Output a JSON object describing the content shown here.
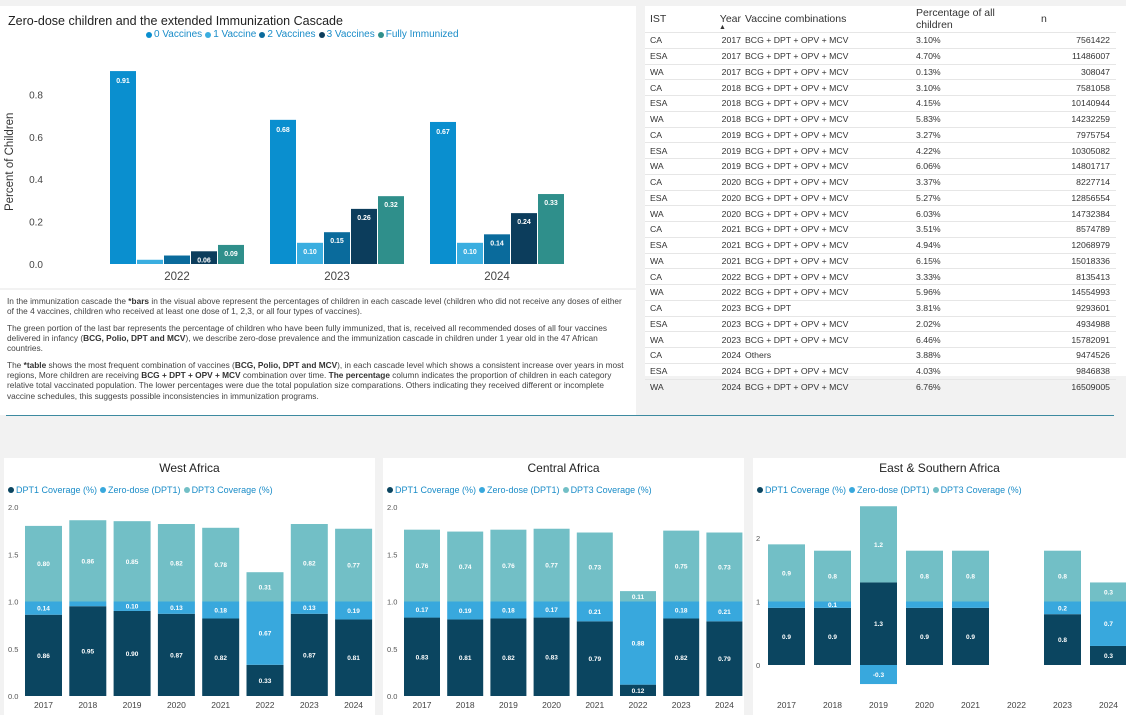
{
  "cascade": {
    "title": "Zero-dose children and the extended Immunization Cascade",
    "legend": [
      "0 Vaccines",
      "1 Vaccine",
      "2 Vaccines",
      "3 Vaccines",
      "Fully Immunized"
    ],
    "ylabel": "Percent of Children"
  },
  "description": {
    "p1_a": "In the immunization cascade the ",
    "p1_b": "*bars",
    "p1_c": " in the visual above represent the percentages of children in each cascade level (children who did not receive any doses of either of the 4 vaccines, children who received at least one dose of 1, 2,3, or all four types of vaccines).",
    "p2_a": "The green portion of the last bar represents the percentage of children who have been fully immunized, that is, received all recommended doses of all four vaccines delivered in infancy (",
    "p2_b": "BCG, Polio, DPT and MCV",
    "p2_c": "), we describe zero-dose prevalence and the immunization cascade in children under 1 year old in the 47 African countries.",
    "p3_a": "The ",
    "p3_b": "*table",
    "p3_c": " shows the most frequent combination  of vaccines (",
    "p3_d": "BCG, Polio, DPT and MCV",
    "p3_e": "), in each cascade level which shows a consistent increase over years in most regions, More children are receiving ",
    "p3_f": "BCG + DPT + OPV + MCV",
    "p3_g": " combination over time. ",
    "p3_h": "The percentage",
    "p3_i": " column indicates the proportion of children in each category relative total vaccinated population. The lower percentages were due the total population size comparations. Others indicating they received different or incomplete vaccine schedules, this suggests possible inconsistencies in immunization programs."
  },
  "table": {
    "headers": [
      "IST",
      "Year",
      "Vaccine combinations",
      "Percentage of all children",
      "n"
    ],
    "sort_indicator": "▲",
    "rows": [
      [
        "CA",
        "2017",
        "BCG + DPT + OPV + MCV",
        "3.10%",
        "7561422"
      ],
      [
        "ESA",
        "2017",
        "BCG + DPT + OPV + MCV",
        "4.70%",
        "11486007"
      ],
      [
        "WA",
        "2017",
        "BCG + DPT + OPV + MCV",
        "0.13%",
        "308047"
      ],
      [
        "CA",
        "2018",
        "BCG + DPT + OPV + MCV",
        "3.10%",
        "7581058"
      ],
      [
        "ESA",
        "2018",
        "BCG + DPT + OPV + MCV",
        "4.15%",
        "10140944"
      ],
      [
        "WA",
        "2018",
        "BCG + DPT + OPV + MCV",
        "5.83%",
        "14232259"
      ],
      [
        "CA",
        "2019",
        "BCG + DPT + OPV + MCV",
        "3.27%",
        "7975754"
      ],
      [
        "ESA",
        "2019",
        "BCG + DPT + OPV + MCV",
        "4.22%",
        "10305082"
      ],
      [
        "WA",
        "2019",
        "BCG + DPT + OPV + MCV",
        "6.06%",
        "14801717"
      ],
      [
        "CA",
        "2020",
        "BCG + DPT + OPV + MCV",
        "3.37%",
        "8227714"
      ],
      [
        "ESA",
        "2020",
        "BCG + DPT + OPV + MCV",
        "5.27%",
        "12856554"
      ],
      [
        "WA",
        "2020",
        "BCG + DPT + OPV + MCV",
        "6.03%",
        "14732384"
      ],
      [
        "CA",
        "2021",
        "BCG + DPT + OPV + MCV",
        "3.51%",
        "8574789"
      ],
      [
        "ESA",
        "2021",
        "BCG + DPT + OPV + MCV",
        "4.94%",
        "12068979"
      ],
      [
        "WA",
        "2021",
        "BCG + DPT + OPV + MCV",
        "6.15%",
        "15018336"
      ],
      [
        "CA",
        "2022",
        "BCG + DPT + OPV + MCV",
        "3.33%",
        "8135413"
      ],
      [
        "WA",
        "2022",
        "BCG + DPT + OPV + MCV",
        "5.96%",
        "14554993"
      ],
      [
        "CA",
        "2023",
        "BCG + DPT",
        "3.81%",
        "9293601"
      ],
      [
        "ESA",
        "2023",
        "BCG + DPT + OPV + MCV",
        "2.02%",
        "4934988"
      ],
      [
        "WA",
        "2023",
        "BCG + DPT + OPV + MCV",
        "6.46%",
        "15782091"
      ],
      [
        "CA",
        "2024",
        "Others",
        "3.88%",
        "9474526"
      ],
      [
        "ESA",
        "2024",
        "BCG + DPT + OPV + MCV",
        "4.03%",
        "9846838"
      ],
      [
        "WA",
        "2024",
        "BCG + DPT + OPV + MCV",
        "6.76%",
        "16509005"
      ]
    ]
  },
  "colors": {
    "zero_vaccines": "#0a8fcf",
    "one_vaccine": "#3aaee0",
    "two_vaccines": "#0a6b9c",
    "three_vaccines": "#0c3d5c",
    "fully_immunized": "#2f8f8b",
    "dpt1": "#0b4560",
    "zero_dose": "#38a8dd",
    "dpt3": "#72bfc6"
  },
  "chart_data": [
    {
      "id": "cascade",
      "type": "bar",
      "title": "Zero-dose children and the extended Immunization Cascade",
      "xlabel": "",
      "ylabel": "Percent of Children",
      "categories": [
        "2022",
        "2023",
        "2024"
      ],
      "ylim": [
        0,
        1.0
      ],
      "yticks": [
        0.0,
        0.2,
        0.4,
        0.6,
        0.8
      ],
      "series": [
        {
          "name": "0 Vaccines",
          "values": [
            0.91,
            0.68,
            0.67
          ]
        },
        {
          "name": "1 Vaccine",
          "values": [
            0.02,
            0.1,
            0.1
          ]
        },
        {
          "name": "2 Vaccines",
          "values": [
            0.04,
            0.15,
            0.14
          ]
        },
        {
          "name": "3 Vaccines",
          "values": [
            0.06,
            0.26,
            0.24
          ]
        },
        {
          "name": "Fully Immunized",
          "values": [
            0.09,
            0.32,
            0.33
          ]
        }
      ],
      "labels": [
        [
          "0.91",
          "",
          "",
          "0.06",
          "0.09"
        ],
        [
          "0.68",
          "0.10",
          "0.15",
          "0.26",
          "0.32"
        ],
        [
          "0.67",
          "0.10",
          "0.14",
          "0.24",
          "0.33"
        ]
      ]
    },
    {
      "id": "west",
      "type": "bar",
      "stacked": true,
      "title": "West Africa",
      "categories": [
        "2017",
        "2018",
        "2019",
        "2020",
        "2021",
        "2022",
        "2023",
        "2024"
      ],
      "ylim": [
        0,
        2.0
      ],
      "yticks": [
        "0.0",
        "0.5",
        "1.0",
        "1.5",
        "2.0"
      ],
      "legend": [
        "DPT1 Coverage (%)",
        "Zero-dose (DPT1)",
        "DPT3 Coverage (%)"
      ],
      "series": [
        {
          "name": "DPT1 Coverage (%)",
          "values": [
            0.86,
            0.95,
            0.9,
            0.87,
            0.82,
            0.33,
            0.87,
            0.81
          ]
        },
        {
          "name": "Zero-dose (DPT1)",
          "values": [
            0.14,
            0.05,
            0.1,
            0.13,
            0.18,
            0.67,
            0.13,
            0.19
          ]
        },
        {
          "name": "DPT3 Coverage (%)",
          "values": [
            0.8,
            0.86,
            0.85,
            0.82,
            0.78,
            0.31,
            0.82,
            0.77
          ]
        }
      ],
      "labels": [
        [
          "0.86",
          "0.95",
          "0.90",
          "0.87",
          "0.82",
          "0.33",
          "0.87",
          "0.81"
        ],
        [
          "0.14",
          "",
          "0.10",
          "0.13",
          "0.18",
          "0.67",
          "0.13",
          "0.19"
        ],
        [
          "0.80",
          "0.86",
          "0.85",
          "0.82",
          "0.78",
          "0.31",
          "0.82",
          "0.77"
        ]
      ]
    },
    {
      "id": "central",
      "type": "bar",
      "stacked": true,
      "title": "Central Africa",
      "categories": [
        "2017",
        "2018",
        "2019",
        "2020",
        "2021",
        "2022",
        "2023",
        "2024"
      ],
      "ylim": [
        0,
        2.0
      ],
      "yticks": [
        "0.0",
        "0.5",
        "1.0",
        "1.5",
        "2.0"
      ],
      "legend": [
        "DPT1 Coverage (%)",
        "Zero-dose (DPT1)",
        "DPT3 Coverage (%)"
      ],
      "series": [
        {
          "name": "DPT1 Coverage (%)",
          "values": [
            0.83,
            0.81,
            0.82,
            0.83,
            0.79,
            0.12,
            0.82,
            0.79
          ]
        },
        {
          "name": "Zero-dose (DPT1)",
          "values": [
            0.17,
            0.19,
            0.18,
            0.17,
            0.21,
            0.88,
            0.18,
            0.21
          ]
        },
        {
          "name": "DPT3 Coverage (%)",
          "values": [
            0.76,
            0.74,
            0.76,
            0.77,
            0.73,
            0.11,
            0.75,
            0.73
          ]
        }
      ],
      "labels": [
        [
          "0.83",
          "0.81",
          "0.82",
          "0.83",
          "0.79",
          "0.12",
          "0.82",
          "0.79"
        ],
        [
          "0.17",
          "0.19",
          "0.18",
          "0.17",
          "0.21",
          "0.88",
          "0.18",
          "0.21"
        ],
        [
          "0.76",
          "0.74",
          "0.76",
          "0.77",
          "0.73",
          "0.11",
          "0.75",
          "0.73"
        ]
      ]
    },
    {
      "id": "east",
      "type": "bar",
      "stacked": true,
      "title": "East & Southern Africa",
      "categories": [
        "2017",
        "2018",
        "2019",
        "2020",
        "2021",
        "2022",
        "2023",
        "2024"
      ],
      "ylim": [
        -0.3,
        2.5
      ],
      "yticks": [
        "0",
        "1",
        "2"
      ],
      "legend": [
        "DPT1 Coverage (%)",
        "Zero-dose (DPT1)",
        "DPT3 Coverage (%)"
      ],
      "series": [
        {
          "name": "DPT1 Coverage (%)",
          "values": [
            0.9,
            0.9,
            1.3,
            0.9,
            0.9,
            0,
            0.8,
            0.3
          ]
        },
        {
          "name": "Zero-dose (DPT1)",
          "values": [
            0.1,
            0.1,
            -0.3,
            0.1,
            0.1,
            0,
            0.2,
            0.7
          ]
        },
        {
          "name": "DPT3 Coverage (%)",
          "values": [
            0.9,
            0.8,
            1.2,
            0.8,
            0.8,
            0,
            0.8,
            0.3
          ]
        }
      ],
      "labels": [
        [
          "0.9",
          "0.9",
          "1.3",
          "0.9",
          "0.9",
          "",
          "0.8",
          "0.3"
        ],
        [
          "",
          "0.1",
          "-0.3",
          "",
          "",
          "",
          "0.2",
          "0.7"
        ],
        [
          "0.9",
          "0.8",
          "1.2",
          "0.8",
          "0.8",
          "",
          "0.8",
          "0.3"
        ]
      ]
    }
  ]
}
